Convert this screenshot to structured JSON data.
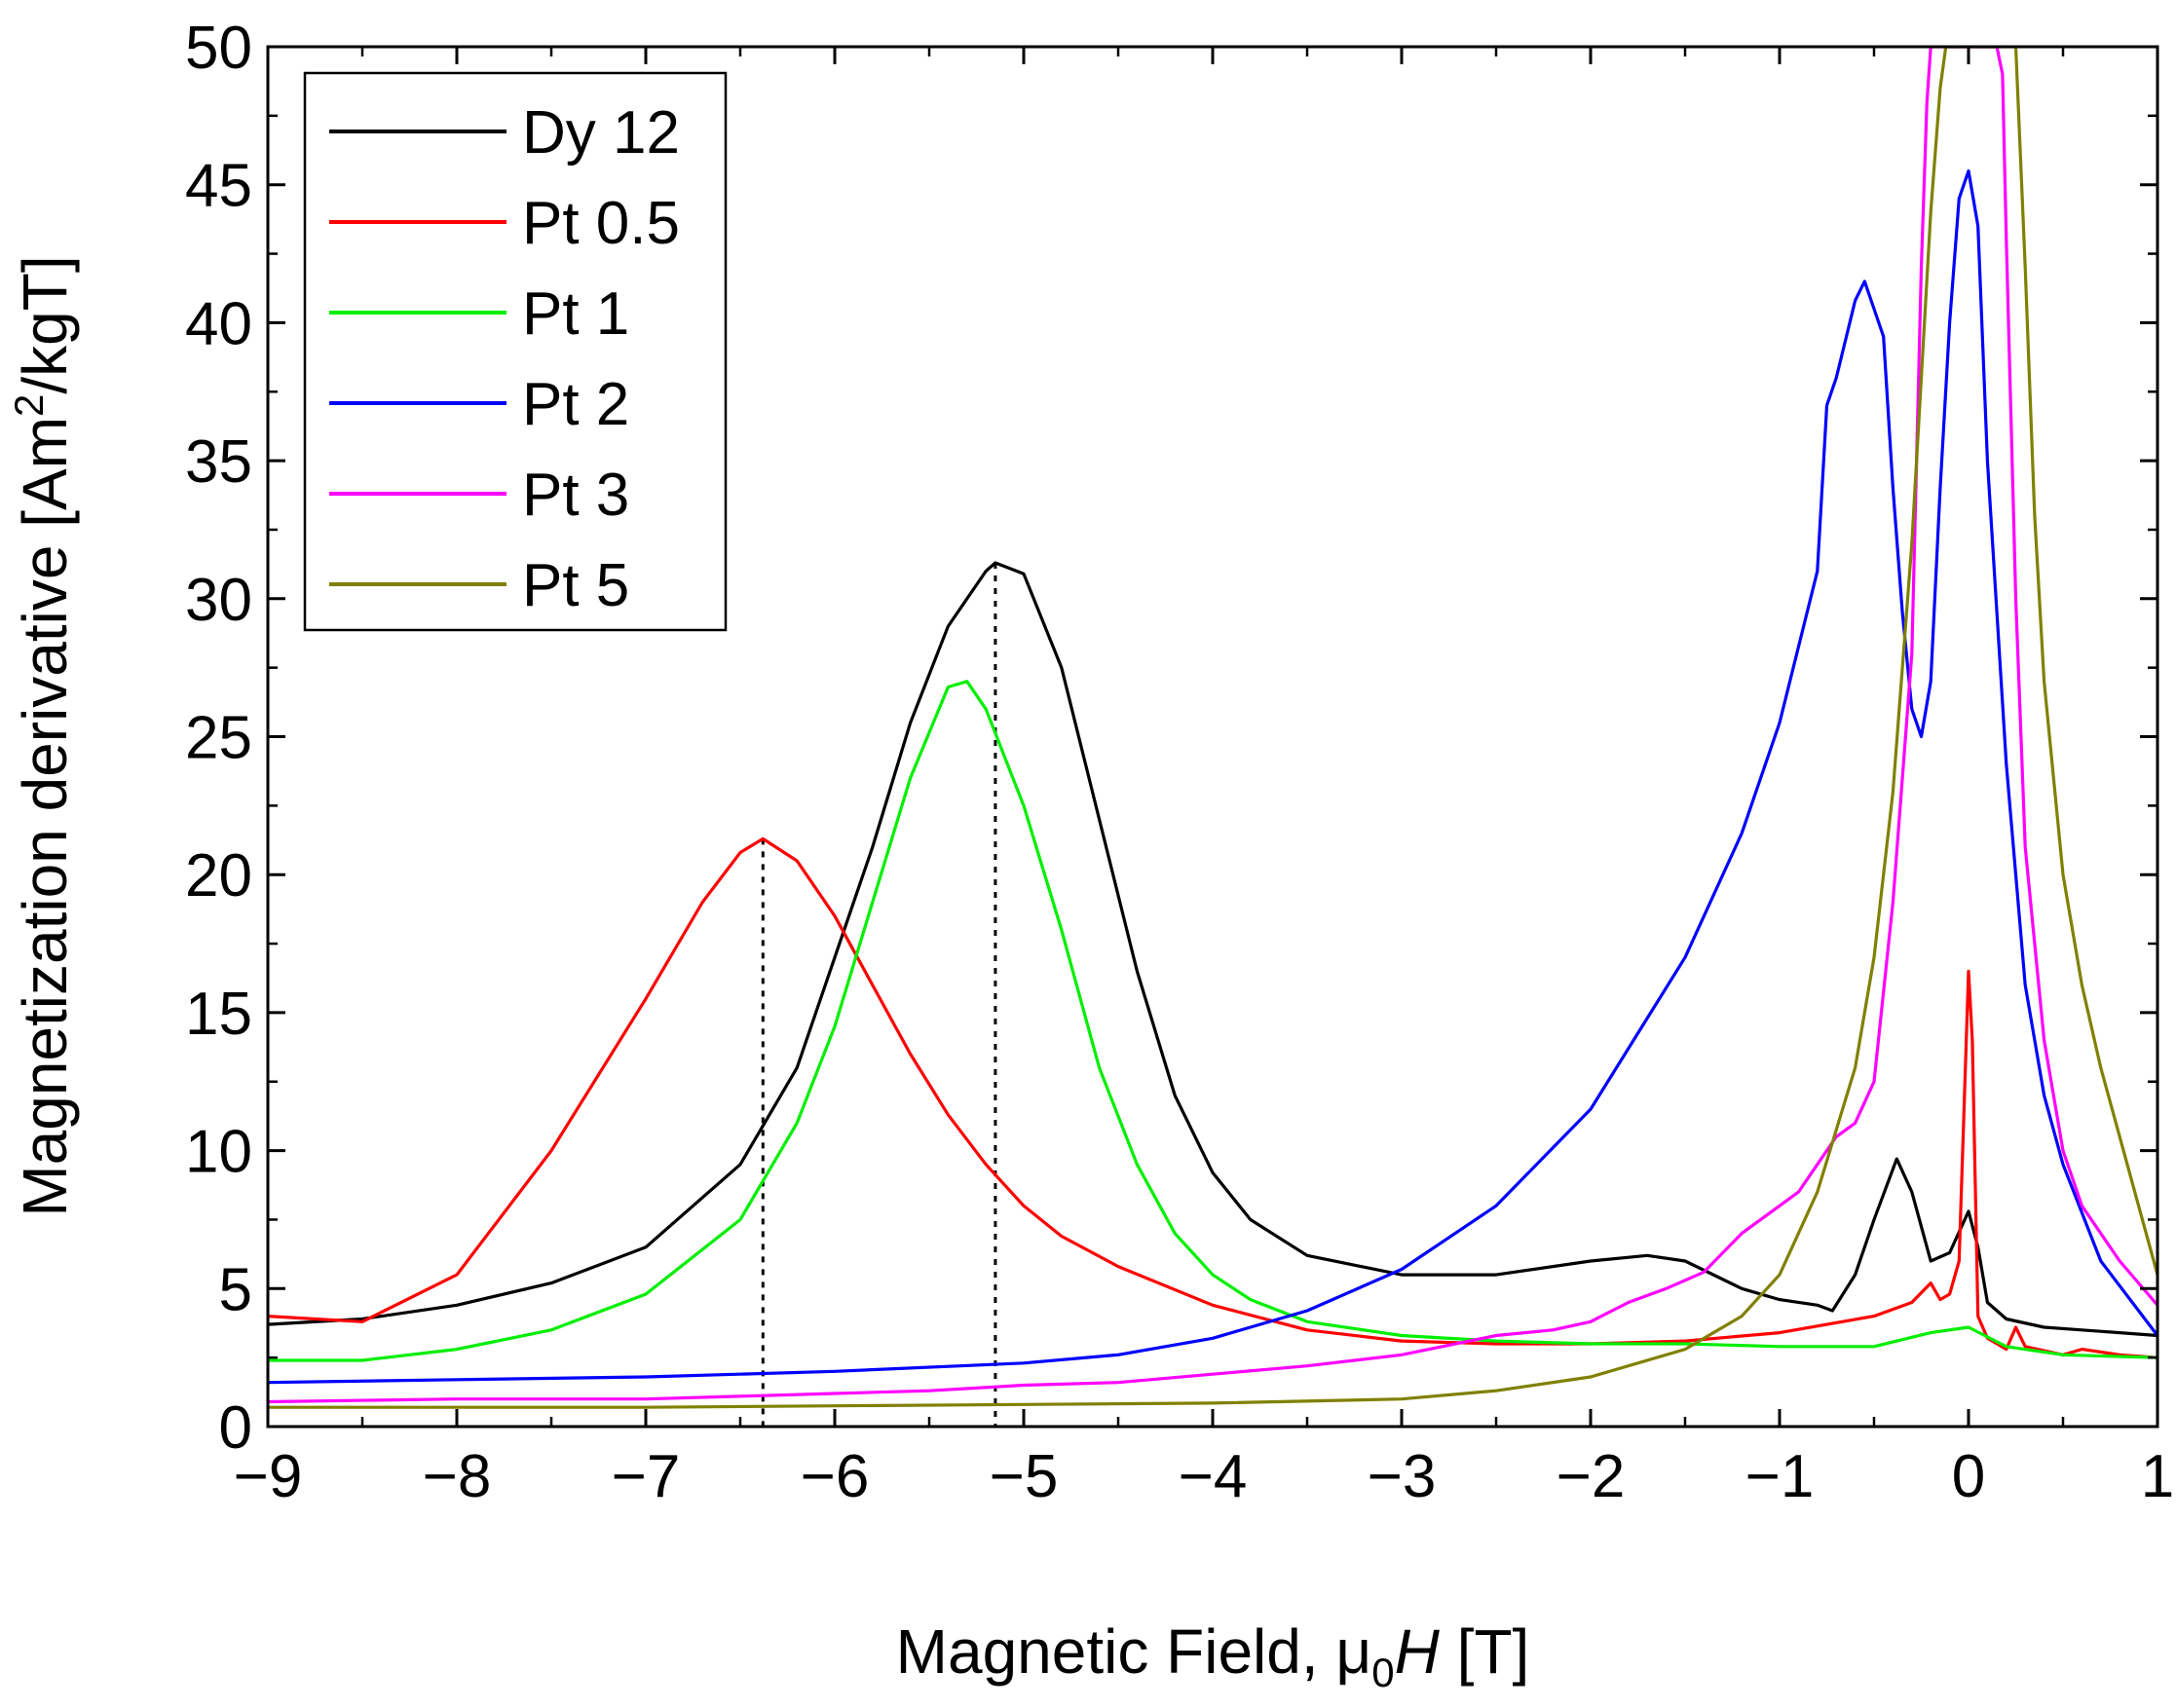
{
  "chart_data": {
    "type": "line",
    "title": "",
    "xlabel": {
      "prefix": "Magnetic Field, ",
      "mu": "μ",
      "sub": "0",
      "italic": "H",
      "suffix": " [T]"
    },
    "ylabel": {
      "prefix": "Magnetization derivative [Am",
      "sup": "2",
      "suffix": "/kgT]"
    },
    "xlim": [
      -9,
      1
    ],
    "ylim": [
      0,
      50
    ],
    "xticks": [
      -9,
      -8,
      -7,
      -6,
      -5,
      -4,
      -3,
      -2,
      -1,
      0,
      1
    ],
    "xtick_labels": [
      "−9",
      "−8",
      "−7",
      "−6",
      "−5",
      "−4",
      "−3",
      "−2",
      "−1",
      "0",
      "1"
    ],
    "yticks": [
      0,
      5,
      10,
      15,
      20,
      25,
      30,
      35,
      40,
      45,
      50
    ],
    "ytick_labels": [
      "0",
      "5",
      "10",
      "15",
      "20",
      "25",
      "30",
      "35",
      "40",
      "45",
      "50"
    ],
    "legend_position": "top-left",
    "grid": false,
    "markers": [
      {
        "x": -6.38,
        "y": 21.3,
        "style": "dotted"
      },
      {
        "x": -5.15,
        "y": 31.3,
        "style": "dotted"
      }
    ],
    "series": [
      {
        "name": "Dy 12",
        "color": "#000000",
        "x": [
          -9,
          -8.5,
          -8,
          -7.5,
          -7,
          -6.5,
          -6.2,
          -6,
          -5.8,
          -5.6,
          -5.4,
          -5.2,
          -5.15,
          -5,
          -4.8,
          -4.6,
          -4.4,
          -4.2,
          -4,
          -3.8,
          -3.5,
          -3,
          -2.5,
          -2,
          -1.7,
          -1.5,
          -1.2,
          -1,
          -0.8,
          -0.72,
          -0.6,
          -0.5,
          -0.38,
          -0.3,
          -0.2,
          -0.1,
          0,
          0.05,
          0.1,
          0.2,
          0.4,
          0.6,
          0.8,
          1
        ],
        "y": [
          3.7,
          3.9,
          4.4,
          5.2,
          6.5,
          9.5,
          13,
          17,
          21,
          25.5,
          29,
          31,
          31.3,
          30.9,
          27.5,
          22,
          16.5,
          12,
          9.2,
          7.5,
          6.2,
          5.5,
          5.5,
          6.0,
          6.2,
          6.0,
          5.0,
          4.6,
          4.4,
          4.2,
          5.5,
          7.5,
          9.7,
          8.5,
          6.0,
          6.3,
          7.8,
          6.5,
          4.5,
          3.9,
          3.6,
          3.5,
          3.4,
          3.3
        ]
      },
      {
        "name": "Pt 0.5",
        "color": "#ff0000",
        "x": [
          -9,
          -8.5,
          -8,
          -7.5,
          -7,
          -6.7,
          -6.5,
          -6.38,
          -6.2,
          -6,
          -5.8,
          -5.6,
          -5.4,
          -5.2,
          -5,
          -4.8,
          -4.5,
          -4,
          -3.5,
          -3,
          -2.5,
          -2,
          -1.5,
          -1,
          -0.5,
          -0.3,
          -0.2,
          -0.15,
          -0.1,
          -0.05,
          0,
          0.02,
          0.05,
          0.1,
          0.2,
          0.25,
          0.3,
          0.5,
          0.6,
          0.8,
          1
        ],
        "y": [
          4.0,
          3.8,
          5.5,
          10,
          15.5,
          19,
          20.8,
          21.3,
          20.5,
          18.5,
          16,
          13.5,
          11.3,
          9.5,
          8.0,
          6.9,
          5.8,
          4.4,
          3.5,
          3.1,
          3.0,
          3.0,
          3.1,
          3.4,
          4.0,
          4.5,
          5.2,
          4.6,
          4.8,
          6.0,
          16.5,
          14,
          4.0,
          3.2,
          2.8,
          3.6,
          2.9,
          2.6,
          2.8,
          2.6,
          2.5
        ]
      },
      {
        "name": "Pt 1",
        "color": "#00ee00",
        "x": [
          -9,
          -8.5,
          -8,
          -7.5,
          -7,
          -6.5,
          -6.2,
          -6,
          -5.8,
          -5.6,
          -5.4,
          -5.3,
          -5.2,
          -5,
          -4.8,
          -4.6,
          -4.4,
          -4.2,
          -4,
          -3.8,
          -3.5,
          -3,
          -2.5,
          -2,
          -1.5,
          -1,
          -0.5,
          -0.2,
          0,
          0.2,
          0.5,
          1
        ],
        "y": [
          2.4,
          2.4,
          2.8,
          3.5,
          4.8,
          7.5,
          11,
          14.5,
          19,
          23.5,
          26.8,
          27,
          26,
          22.5,
          18,
          13,
          9.5,
          7,
          5.5,
          4.6,
          3.8,
          3.3,
          3.1,
          3.0,
          3.0,
          2.9,
          2.9,
          3.4,
          3.6,
          2.9,
          2.6,
          2.5
        ]
      },
      {
        "name": "Pt 2",
        "color": "#0000ff",
        "x": [
          -9,
          -8,
          -7,
          -6,
          -5,
          -4.5,
          -4,
          -3.5,
          -3,
          -2.5,
          -2,
          -1.5,
          -1.2,
          -1,
          -0.8,
          -0.75,
          -0.7,
          -0.6,
          -0.55,
          -0.45,
          -0.4,
          -0.35,
          -0.3,
          -0.25,
          -0.2,
          -0.15,
          -0.1,
          -0.05,
          0,
          0.05,
          0.1,
          0.2,
          0.3,
          0.4,
          0.5,
          0.7,
          1
        ],
        "y": [
          1.6,
          1.7,
          1.8,
          2.0,
          2.3,
          2.6,
          3.2,
          4.2,
          5.7,
          8.0,
          11.5,
          17,
          21.5,
          25.5,
          31,
          37,
          38,
          40.8,
          41.5,
          39.5,
          34,
          29.5,
          26,
          25,
          27,
          34,
          40,
          44.5,
          45.5,
          43.5,
          35,
          24,
          16,
          12,
          9.5,
          6,
          3.3
        ]
      },
      {
        "name": "Pt 3",
        "color": "#ff00ff",
        "x": [
          -9,
          -8,
          -7,
          -6,
          -5.5,
          -5,
          -4.5,
          -4,
          -3.5,
          -3,
          -2.5,
          -2.2,
          -2,
          -1.8,
          -1.6,
          -1.4,
          -1.2,
          -1,
          -0.9,
          -0.8,
          -0.7,
          -0.6,
          -0.5,
          -0.4,
          -0.3,
          -0.25,
          -0.22,
          -0.2,
          0.15,
          0.18,
          0.2,
          0.25,
          0.3,
          0.4,
          0.5,
          0.6,
          0.8,
          1
        ],
        "y": [
          0.9,
          1.0,
          1.0,
          1.2,
          1.3,
          1.5,
          1.6,
          1.9,
          2.2,
          2.6,
          3.3,
          3.5,
          3.8,
          4.5,
          5.0,
          5.6,
          7.0,
          8.0,
          8.5,
          9.5,
          10.5,
          11,
          12.5,
          19,
          28,
          42,
          48,
          50,
          50,
          49,
          43,
          30,
          21,
          14,
          10,
          8.0,
          6.0,
          4.4
        ]
      },
      {
        "name": "Pt 5",
        "color": "#808000",
        "x": [
          -9,
          -8,
          -7,
          -6,
          -5,
          -4,
          -3,
          -2.5,
          -2,
          -1.5,
          -1.2,
          -1,
          -0.8,
          -0.6,
          -0.5,
          -0.4,
          -0.3,
          -0.25,
          -0.2,
          -0.15,
          -0.12,
          -0.1,
          0.25,
          0.3,
          0.35,
          0.4,
          0.5,
          0.6,
          0.7,
          0.8,
          0.9,
          1
        ],
        "y": [
          0.7,
          0.7,
          0.7,
          0.75,
          0.8,
          0.85,
          1.0,
          1.3,
          1.8,
          2.8,
          4.0,
          5.5,
          8.5,
          13,
          17,
          23,
          32,
          38,
          44,
          48.5,
          50,
          50,
          50,
          42,
          33,
          27,
          20,
          16,
          13,
          10.5,
          8.0,
          5.5
        ]
      }
    ]
  }
}
